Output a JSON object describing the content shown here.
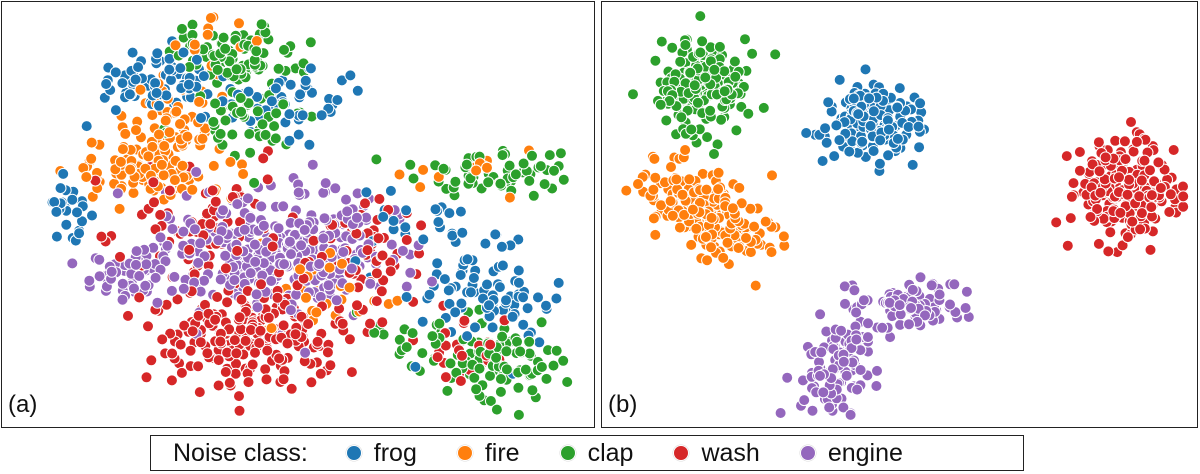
{
  "colors": {
    "frog": "#1f77b4",
    "fire": "#ff7f0e",
    "clap": "#2ca02c",
    "wash": "#d62728",
    "engine": "#9467bd"
  },
  "legend": {
    "title": "Noise class:",
    "items": [
      {
        "key": "frog",
        "label": "frog"
      },
      {
        "key": "fire",
        "label": "fire"
      },
      {
        "key": "clap",
        "label": "clap"
      },
      {
        "key": "wash",
        "label": "wash"
      },
      {
        "key": "engine",
        "label": "engine"
      }
    ]
  },
  "chart_data": [
    {
      "type": "scatter",
      "panel_label": "(a)",
      "title": "",
      "xlabel": "",
      "ylabel": "",
      "axes_visible": false,
      "xlim": [
        0,
        100
      ],
      "ylim": [
        0,
        100
      ],
      "series": [
        {
          "name": "frog",
          "clusters": [
            {
              "cx": 25,
              "cy": 83,
              "sx": 6,
              "sy": 4,
              "n": 70
            },
            {
              "cx": 48,
              "cy": 78,
              "sx": 7,
              "sy": 4,
              "n": 60
            },
            {
              "cx": 10,
              "cy": 52,
              "sx": 2,
              "sy": 3,
              "n": 25
            },
            {
              "cx": 82,
              "cy": 30,
              "sx": 6,
              "sy": 6,
              "n": 90
            },
            {
              "cx": 70,
              "cy": 45,
              "sx": 6,
              "sy": 5,
              "n": 25
            }
          ]
        },
        {
          "name": "fire",
          "clusters": [
            {
              "cx": 25,
              "cy": 62,
              "sx": 7,
              "sy": 4,
              "n": 110
            },
            {
              "cx": 28,
              "cy": 75,
              "sx": 4,
              "sy": 6,
              "n": 50
            },
            {
              "cx": 35,
              "cy": 92,
              "sx": 3,
              "sy": 3,
              "n": 15
            },
            {
              "cx": 55,
              "cy": 32,
              "sx": 6,
              "sy": 6,
              "n": 35
            },
            {
              "cx": 77,
              "cy": 61,
              "sx": 6,
              "sy": 3,
              "n": 12
            }
          ]
        },
        {
          "name": "clap",
          "clusters": [
            {
              "cx": 38,
              "cy": 89,
              "sx": 6,
              "sy": 4,
              "n": 90
            },
            {
              "cx": 42,
              "cy": 73,
              "sx": 6,
              "sy": 5,
              "n": 50
            },
            {
              "cx": 84,
              "cy": 61,
              "sx": 7,
              "sy": 3,
              "n": 60
            },
            {
              "cx": 87,
              "cy": 14,
              "sx": 5,
              "sy": 5,
              "n": 80
            },
            {
              "cx": 75,
              "cy": 20,
              "sx": 5,
              "sy": 4,
              "n": 30
            }
          ]
        },
        {
          "name": "wash",
          "clusters": [
            {
              "cx": 42,
              "cy": 20,
              "sx": 8,
              "sy": 6,
              "n": 220
            },
            {
              "cx": 35,
              "cy": 45,
              "sx": 9,
              "sy": 8,
              "n": 80
            },
            {
              "cx": 63,
              "cy": 40,
              "sx": 5,
              "sy": 8,
              "n": 60
            },
            {
              "cx": 78,
              "cy": 18,
              "sx": 5,
              "sy": 4,
              "n": 25
            }
          ]
        },
        {
          "name": "engine",
          "clusters": [
            {
              "cx": 48,
              "cy": 42,
              "sx": 11,
              "sy": 8,
              "n": 320
            },
            {
              "cx": 21,
              "cy": 35,
              "sx": 4,
              "sy": 3.5,
              "n": 60
            }
          ]
        }
      ]
    },
    {
      "type": "scatter",
      "panel_label": "(b)",
      "title": "",
      "xlabel": "",
      "ylabel": "",
      "axes_visible": false,
      "xlim": [
        0,
        100
      ],
      "ylim": [
        0,
        100
      ],
      "series": [
        {
          "name": "frog",
          "clusters": [
            {
              "cx": 45,
              "cy": 73,
              "sx": 4,
              "sy": 4.5,
              "n": 190
            }
          ]
        },
        {
          "name": "fire",
          "clusters": [
            {
              "cx": 17,
              "cy": 50,
              "sx": 6,
              "sy": 5,
              "n": 210,
              "tilt": -0.45
            }
          ]
        },
        {
          "name": "clap",
          "clusters": [
            {
              "cx": 16,
              "cy": 82,
              "sx": 4,
              "sy": 6,
              "n": 180
            }
          ]
        },
        {
          "name": "wash",
          "clusters": [
            {
              "cx": 89,
              "cy": 56,
              "sx": 4,
              "sy": 6,
              "n": 230
            },
            {
              "cx": 77,
              "cy": 48,
              "sx": 0.2,
              "sy": 0.2,
              "n": 1
            }
          ]
        },
        {
          "name": "engine",
          "clusters": [
            {
              "cx": 39,
              "cy": 13,
              "sx": 3,
              "sy": 6,
              "n": 110,
              "tilt": 0.55
            },
            {
              "cx": 52,
              "cy": 28,
              "sx": 4,
              "sy": 3,
              "n": 90
            }
          ]
        }
      ]
    }
  ]
}
